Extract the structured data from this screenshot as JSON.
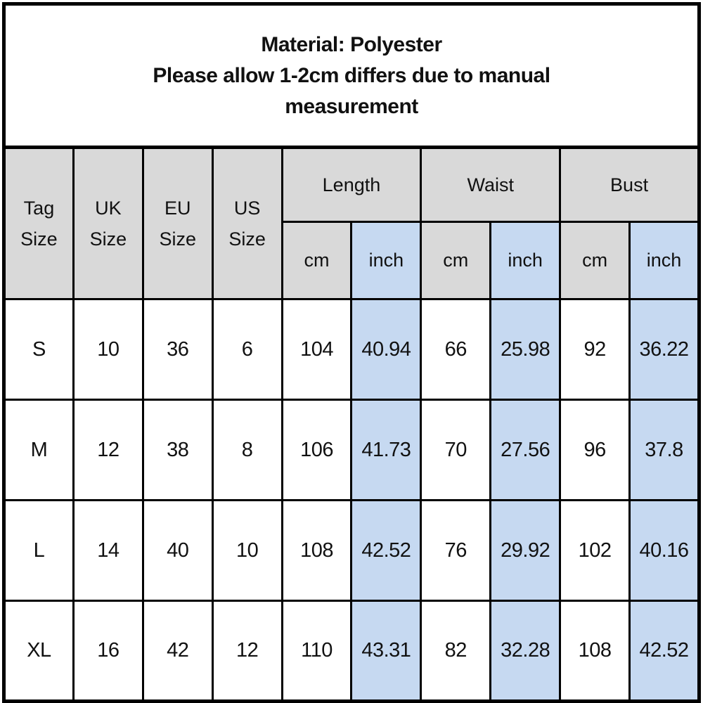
{
  "colors": {
    "background": "#ffffff",
    "border": "#000000",
    "header_bg": "#d9d9d9",
    "inch_highlight_bg": "#c6d9f1",
    "text": "#111111"
  },
  "header": {
    "line1": "Material: Polyester",
    "line2": "Please allow 1-2cm differs due to manual measurement"
  },
  "chart_data": {
    "type": "table",
    "title": "Material: Polyester — Please allow 1-2cm differs due to manual measurement",
    "size_headers": [
      [
        "Tag",
        "Size"
      ],
      [
        "UK",
        "Size"
      ],
      [
        "EU",
        "Size"
      ],
      [
        "US",
        "Size"
      ]
    ],
    "column_groups": [
      "Length",
      "Waist",
      "Bust"
    ],
    "unit_headers": [
      "cm",
      "inch",
      "cm",
      "inch",
      "cm",
      "inch"
    ],
    "rows": [
      [
        "S",
        "10",
        "36",
        "6",
        "104",
        "40.94",
        "66",
        "25.98",
        "92",
        "36.22"
      ],
      [
        "M",
        "12",
        "38",
        "8",
        "106",
        "41.73",
        "70",
        "27.56",
        "96",
        "37.8"
      ],
      [
        "L",
        "14",
        "40",
        "10",
        "108",
        "42.52",
        "76",
        "29.92",
        "102",
        "40.16"
      ],
      [
        "XL",
        "16",
        "42",
        "12",
        "110",
        "43.31",
        "82",
        "32.28",
        "108",
        "42.52"
      ]
    ],
    "layout_hints": {
      "grid": true,
      "header_fill": "gray",
      "inch_columns_fill": "light-blue"
    }
  }
}
